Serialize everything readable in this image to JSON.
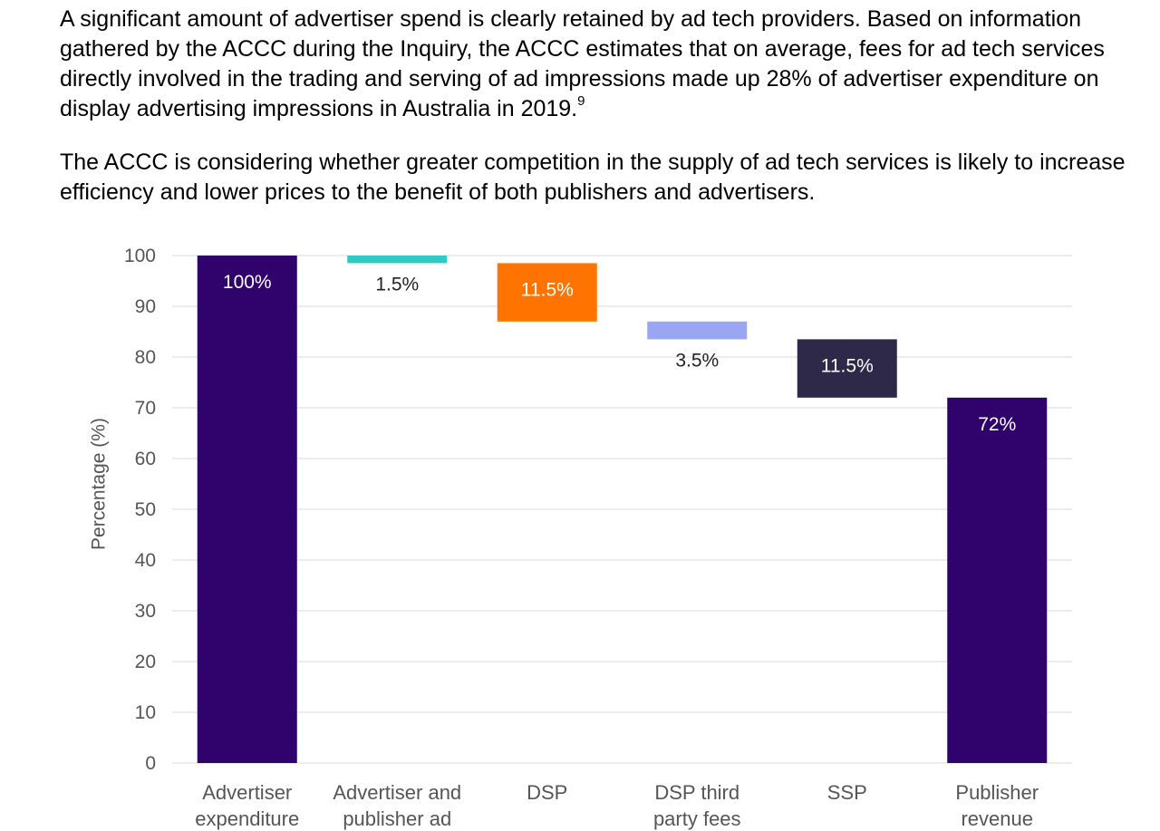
{
  "paragraphs": {
    "p1_text": "A significant amount of advertiser spend is clearly retained by ad tech providers. Based on information gathered by the ACCC during the Inquiry, the ACCC estimates that on average, fees for ad tech services directly involved in the trading and serving of ad impressions made up 28% of advertiser expenditure on display advertising impressions in Australia in 2019.",
    "p1_footnote": "9",
    "p2_text": "The ACCC is considering whether greater competition in the supply of ad tech services is likely to increase efficiency and lower prices to the benefit of both publishers and advertisers."
  },
  "chart_data": {
    "type": "bar",
    "subtype": "waterfall",
    "ylabel": "Percentage (%)",
    "ylim": [
      0,
      100
    ],
    "yticks": [
      0,
      10,
      20,
      30,
      40,
      50,
      60,
      70,
      80,
      90,
      100
    ],
    "grid": true,
    "categories": [
      [
        "Advertiser",
        "expenditure"
      ],
      [
        "Advertiser and",
        "publisher ad"
      ],
      [
        "DSP"
      ],
      [
        "DSP third",
        "party fees"
      ],
      [
        "SSP"
      ],
      [
        "Publisher",
        "revenue"
      ]
    ],
    "bars": [
      {
        "start": 0,
        "end": 100,
        "label": "100%",
        "color": "#30026b",
        "label_color": "#ffffff",
        "label_pos": "inside"
      },
      {
        "start": 98.5,
        "end": 100,
        "label": "1.5%",
        "color": "#2ecbc4",
        "label_color": "#222222",
        "label_pos": "below"
      },
      {
        "start": 87,
        "end": 98.5,
        "label": "11.5%",
        "color": "#ff7400",
        "label_color": "#ffffff",
        "label_pos": "inside"
      },
      {
        "start": 83.5,
        "end": 87,
        "label": "3.5%",
        "color": "#9aa6f3",
        "label_color": "#222222",
        "label_pos": "below"
      },
      {
        "start": 72,
        "end": 83.5,
        "label": "11.5%",
        "color": "#2e2949",
        "label_color": "#ffffff",
        "label_pos": "inside"
      },
      {
        "start": 0,
        "end": 72,
        "label": "72%",
        "color": "#30026b",
        "label_color": "#ffffff",
        "label_pos": "inside"
      }
    ],
    "colors": {
      "grid": "#d9d9d9",
      "tick_text": "#555555",
      "axis_label": "#555555",
      "category_text": "#555555"
    }
  }
}
